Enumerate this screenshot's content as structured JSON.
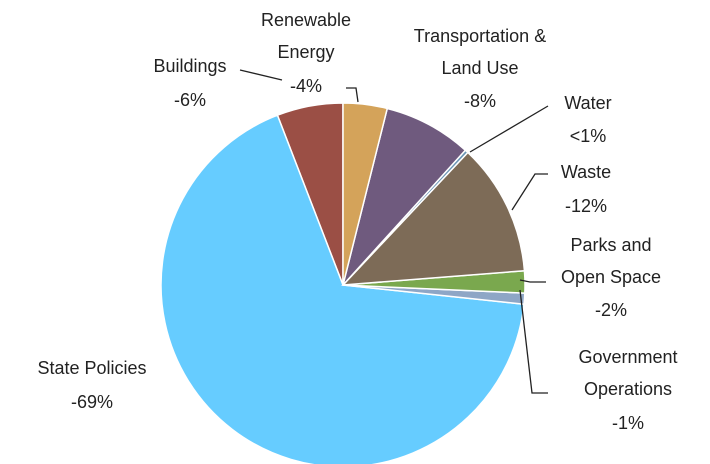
{
  "chart_data": {
    "type": "pie",
    "categories": [
      "Renewable Energy",
      "Transportation & Land Use",
      "Water",
      "Waste",
      "Parks and Open Space",
      "Government Operations",
      "State Policies",
      "Buildings"
    ],
    "values": [
      -4,
      -8,
      -0.3,
      -12,
      -2,
      -1,
      -69,
      -6
    ],
    "value_labels": [
      "-4%",
      "-8%",
      "<1%",
      "-12%",
      "-2%",
      "-1%",
      "-69%",
      "-6%"
    ],
    "colors": [
      "#d4a35a",
      "#6f5a7e",
      "#6b95b5",
      "#7d6b57",
      "#7aa84e",
      "#8ea6c6",
      "#66ccff",
      "#9b4f45"
    ]
  }
}
